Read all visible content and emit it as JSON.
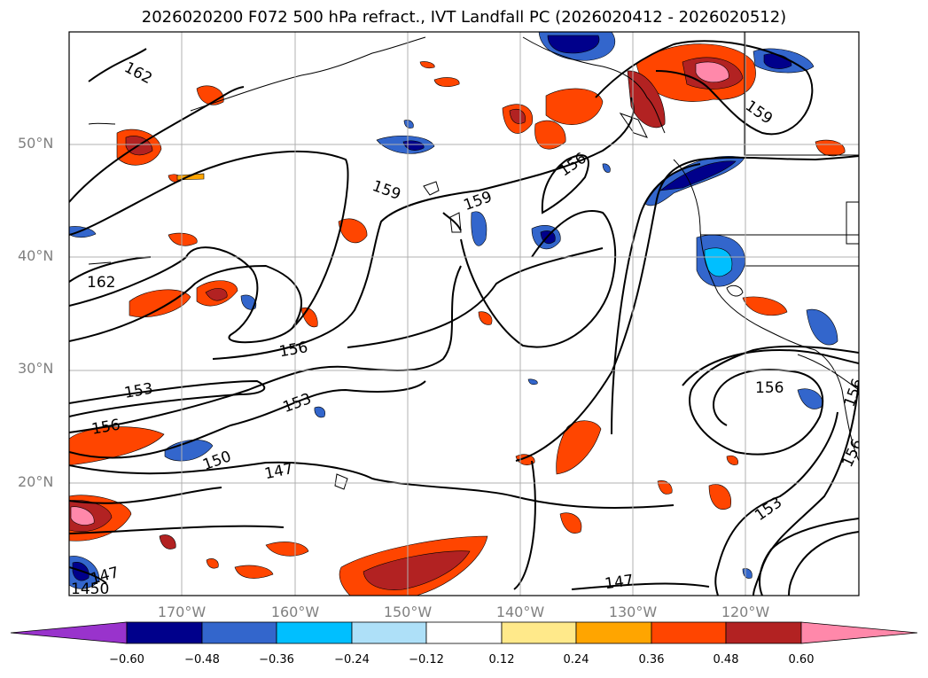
{
  "title": "2026020200 F072 500 hPa refract., IVT Landfall PC (2026020412 - 2026020512)",
  "lat_labels": [
    "50°N",
    "40°N",
    "30°N",
    "20°N"
  ],
  "lon_labels": [
    "170°W",
    "160°W",
    "150°W",
    "140°W",
    "130°W",
    "120°W"
  ],
  "contour_labels": [
    "162",
    "162",
    "159",
    "159",
    "159",
    "156",
    "156",
    "156",
    "156",
    "156",
    "153",
    "153",
    "153",
    "150",
    "147",
    "147",
    "147",
    "1450",
    "156"
  ],
  "colorbar": {
    "ticks": [
      "−0.60",
      "−0.48",
      "−0.36",
      "−0.24",
      "−0.12",
      "0.12",
      "0.24",
      "0.36",
      "0.48",
      "0.60"
    ],
    "colors": [
      "#9933cc",
      "#00008b",
      "#3366cc",
      "#00bfff",
      "#aee0f8",
      "#ffffff",
      "#ffe98a",
      "#ffa500",
      "#ff4500",
      "#b22222",
      "#ff88aa"
    ]
  }
}
